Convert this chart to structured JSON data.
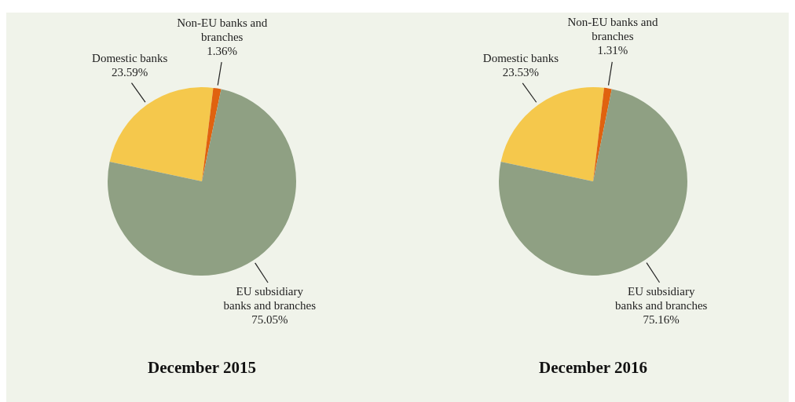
{
  "chart_data": [
    {
      "type": "pie",
      "title": "December 2015",
      "categories": [
        "Domestic banks",
        "Non-EU banks and branches",
        "EU subsidiary banks and branches"
      ],
      "values": [
        23.59,
        1.36,
        75.05
      ],
      "value_labels": [
        "23.59%",
        "1.36%",
        "75.05%"
      ],
      "colors": [
        "#f5c84c",
        "#e0620f",
        "#8fa083"
      ]
    },
    {
      "type": "pie",
      "title": "December 2016",
      "categories": [
        "Domestic banks",
        "Non-EU banks and branches",
        "EU subsidiary banks and branches"
      ],
      "values": [
        23.53,
        1.31,
        75.16
      ],
      "value_labels": [
        "23.53%",
        "1.31%",
        "75.16%"
      ],
      "colors": [
        "#f5c84c",
        "#e0620f",
        "#8fa083"
      ]
    }
  ]
}
